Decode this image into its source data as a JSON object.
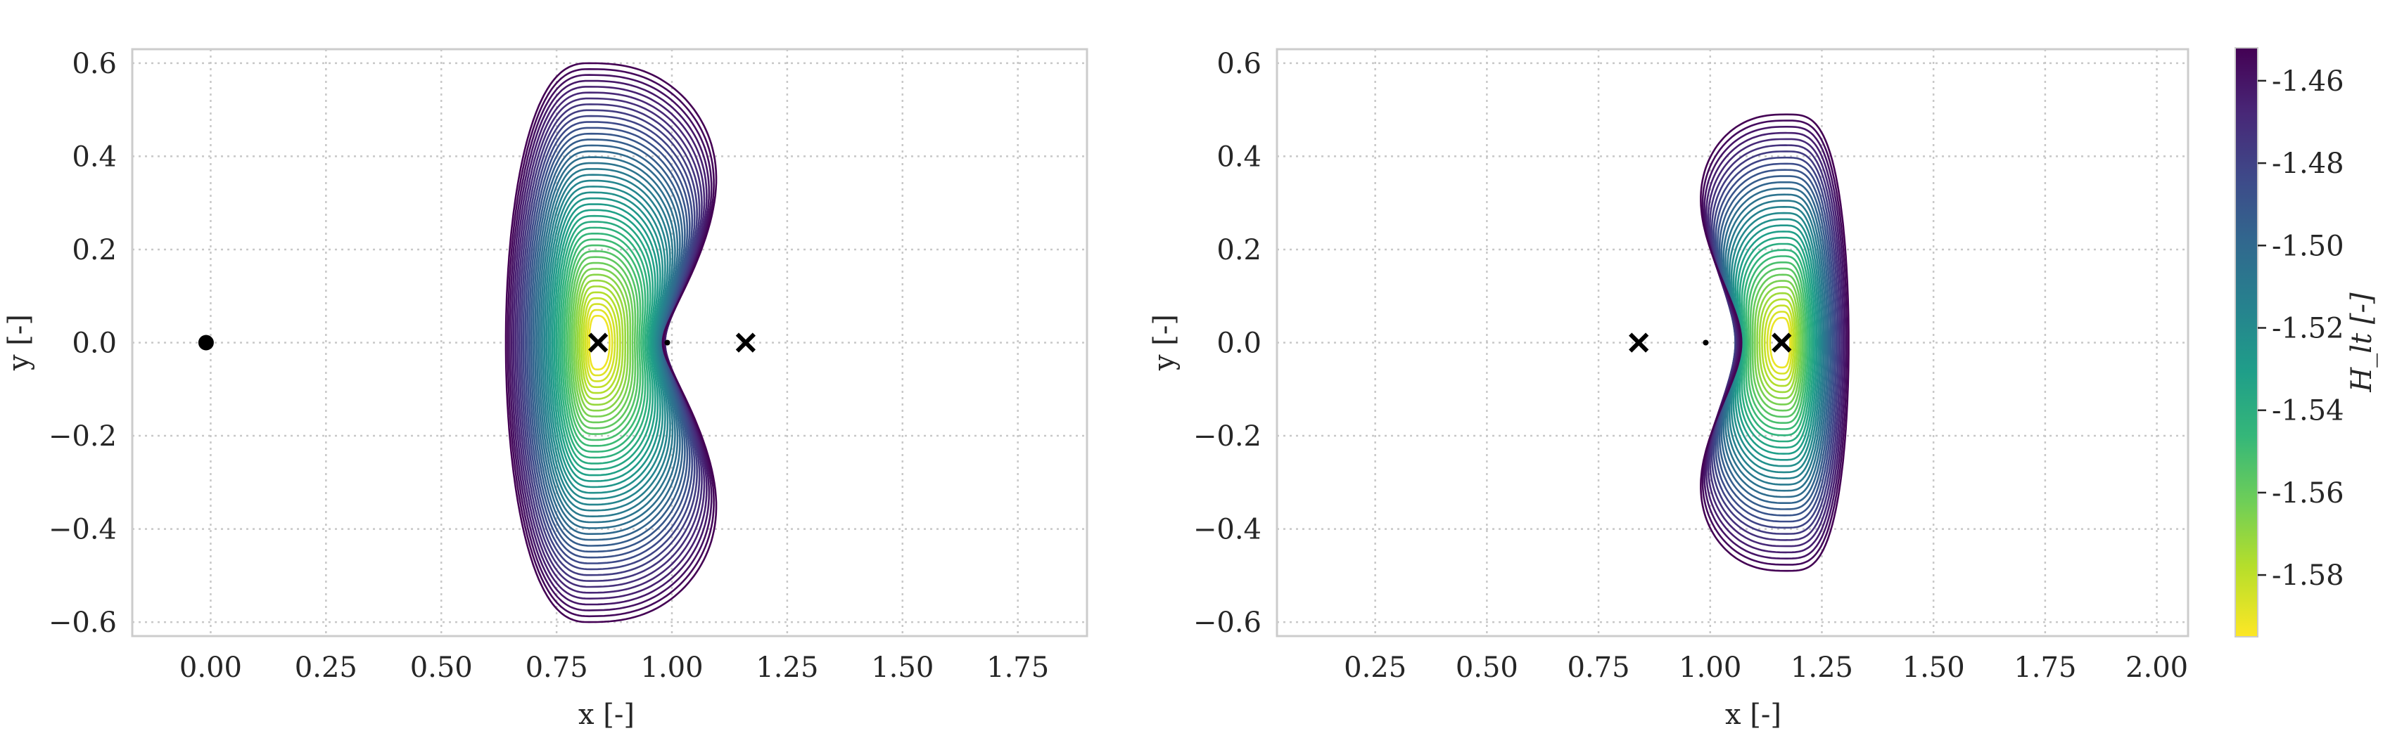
{
  "chart_data": [
    {
      "type": "contour",
      "xlabel": "x [-]",
      "ylabel": "y [-]",
      "xlim": [
        -0.17,
        1.9
      ],
      "ylim": [
        -0.63,
        0.63
      ],
      "x_ticks": [
        0.0,
        0.25,
        0.5,
        0.75,
        1.0,
        1.25,
        1.5,
        1.75
      ],
      "x_tick_labels": [
        "0.00",
        "0.25",
        "0.50",
        "0.75",
        "1.00",
        "1.25",
        "1.50",
        "1.75"
      ],
      "y_ticks": [
        0.6,
        0.4,
        0.2,
        0.0,
        -0.2,
        -0.4,
        -0.6
      ],
      "y_tick_labels": [
        "0.6",
        "0.4",
        "0.2",
        "0.0",
        "−0.2",
        "−0.4",
        "−0.6"
      ],
      "grid": true,
      "contour_extent": {
        "x_min": 0.65,
        "x_max": 1.2,
        "y_min": -0.6,
        "y_max": 0.6
      },
      "contour_levels": 44,
      "markers": [
        {
          "label": "primary",
          "symbol": "dot",
          "x": -0.01,
          "y": 0.0
        },
        {
          "label": "L1",
          "symbol": "x",
          "x": 0.84,
          "y": 0.0
        },
        {
          "label": "L2",
          "symbol": "x",
          "x": 1.16,
          "y": 0.0
        },
        {
          "label": "secondary",
          "symbol": "small-dot",
          "x": 0.99,
          "y": 0.0
        }
      ]
    },
    {
      "type": "contour",
      "xlabel": "x [-]",
      "ylabel": "y [-]",
      "xlim": [
        0.03,
        2.07
      ],
      "ylim": [
        -0.63,
        0.63
      ],
      "x_ticks": [
        0.25,
        0.5,
        0.75,
        1.0,
        1.25,
        1.5,
        1.75,
        2.0
      ],
      "x_tick_labels": [
        "0.25",
        "0.50",
        "0.75",
        "1.00",
        "1.25",
        "1.50",
        "1.75",
        "2.00"
      ],
      "y_ticks": [
        0.6,
        0.4,
        0.2,
        0.0,
        -0.2,
        -0.4,
        -0.6
      ],
      "y_tick_labels": [
        "0.6",
        "0.4",
        "0.2",
        "0.0",
        "−0.2",
        "−0.4",
        "−0.6"
      ],
      "grid": true,
      "contour_extent": {
        "x_min": 0.98,
        "x_max": 1.3,
        "y_min": -0.49,
        "y_max": 0.49
      },
      "contour_levels": 34,
      "markers": [
        {
          "label": "L1",
          "symbol": "x",
          "x": 0.84,
          "y": 0.0
        },
        {
          "label": "L2",
          "symbol": "x",
          "x": 1.16,
          "y": 0.0
        },
        {
          "label": "secondary",
          "symbol": "small-dot",
          "x": 0.99,
          "y": 0.0
        }
      ],
      "colorbar": {
        "label": "H_lt [-]",
        "min": -1.595,
        "max": -1.452,
        "ticks": [
          -1.46,
          -1.48,
          -1.5,
          -1.52,
          -1.54,
          -1.56,
          -1.58
        ],
        "tick_labels": [
          "-1.46",
          "-1.48",
          "-1.50",
          "-1.52",
          "-1.54",
          "-1.56",
          "-1.58"
        ],
        "colormap": "viridis"
      }
    }
  ],
  "colors": {
    "grid": "#c8c8c8",
    "spine": "#cccccc",
    "marker": "#000000",
    "viridis": [
      "#440154",
      "#482777",
      "#3e4989",
      "#31688e",
      "#26828e",
      "#1f9e89",
      "#35b779",
      "#6ece58",
      "#b5de2b",
      "#fde725"
    ]
  }
}
